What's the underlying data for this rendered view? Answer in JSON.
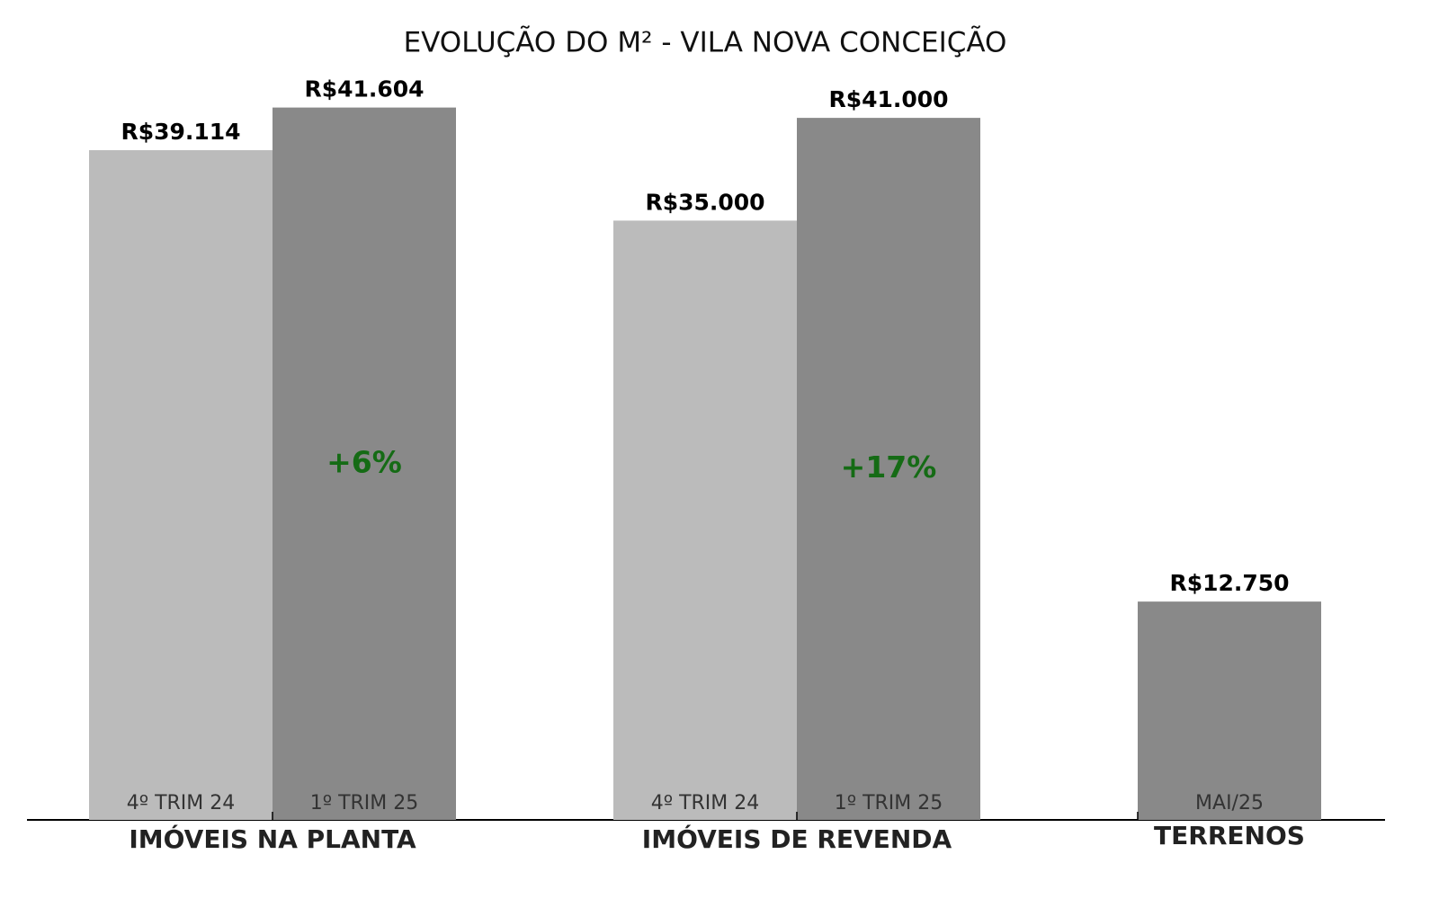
{
  "chart_data": {
    "type": "bar",
    "title": "EVOLUÇÃO DO M² - VILA NOVA CONCEIÇÃO",
    "ylim": [
      0,
      43684
    ],
    "change_color": "#156b15",
    "groups": [
      {
        "name": "IMÓVEIS NA PLANTA",
        "change": "+6%",
        "bars": [
          {
            "label": "4º TRIM 24",
            "value": 39114,
            "value_label": "R$39.114",
            "color": "#bbbbbb"
          },
          {
            "label": "1º TRIM 25",
            "value": 41604,
            "value_label": "R$41.604",
            "color": "#898989"
          }
        ]
      },
      {
        "name": "IMÓVEIS DE REVENDA",
        "change": "+17%",
        "bars": [
          {
            "label": "4º TRIM 24",
            "value": 35000,
            "value_label": "R$35.000",
            "color": "#bbbbbb"
          },
          {
            "label": "1º TRIM 25",
            "value": 41000,
            "value_label": "R$41.000",
            "color": "#898989"
          }
        ]
      },
      {
        "name": "TERRENOS",
        "bars": [
          {
            "label": "MAI/25",
            "value": 12750,
            "value_label": "R$12.750",
            "color": "#898989"
          }
        ]
      }
    ]
  }
}
